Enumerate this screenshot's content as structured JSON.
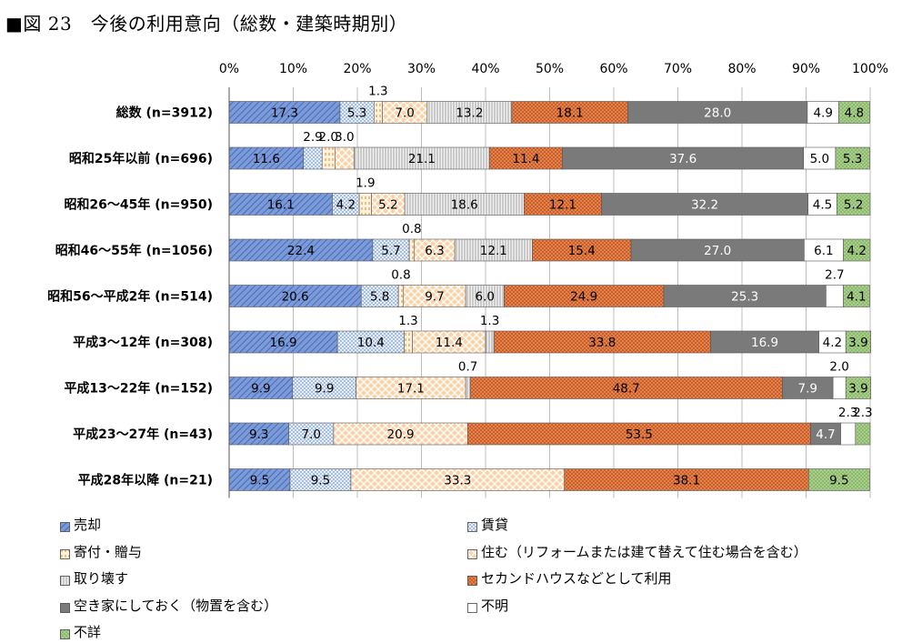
{
  "title": "■図 23　今後の利用意向（総数・建築時期別）",
  "chart_data": {
    "type": "bar",
    "orientation": "horizontal",
    "stacked": "percent",
    "title": "■図 23　今後の利用意向（総数・建築時期別）",
    "x_ticks": [
      "0%",
      "10%",
      "20%",
      "30%",
      "40%",
      "50%",
      "60%",
      "70%",
      "80%",
      "90%",
      "100%"
    ],
    "xlim": [
      0,
      100
    ],
    "legend_position": "bottom",
    "categories": [
      "総数 (n=3912)",
      "昭和25年以前 (n=696)",
      "昭和26～45年 (n=950)",
      "昭和46～55年 (n=1056)",
      "昭和56～平成2年 (n=514)",
      "平成3～12年 (n=308)",
      "平成13～22年 (n=152)",
      "平成23～27年 (n=43)",
      "平成28年以降 (n=21)"
    ],
    "series": [
      {
        "name": "売却",
        "color": "#6f8fd1",
        "pattern": "diag-blue",
        "values": [
          17.3,
          11.6,
          16.1,
          22.4,
          20.6,
          16.9,
          9.9,
          9.3,
          9.5
        ]
      },
      {
        "name": "賃貸",
        "color": "#dbe7f4",
        "pattern": "dots-blue",
        "values": [
          5.3,
          2.9,
          4.2,
          5.7,
          5.8,
          10.4,
          9.9,
          7.0,
          9.5
        ]
      },
      {
        "name": "寄付・贈与",
        "color": "#fde1b8",
        "pattern": "dash-orange",
        "values": [
          1.3,
          2.0,
          1.9,
          0.8,
          0.8,
          1.3,
          0.0,
          0.0,
          0.0
        ]
      },
      {
        "name": "住む（リフォームまたは建て替えて住む場合を含む）",
        "color": "#f9c89a",
        "pattern": "lattice-orange",
        "values": [
          7.0,
          3.0,
          5.2,
          6.3,
          9.7,
          11.4,
          17.1,
          20.9,
          33.3
        ]
      },
      {
        "name": "取り壊す",
        "color": "#e6e6e6",
        "pattern": "vlines-gray",
        "values": [
          13.2,
          21.1,
          18.6,
          12.1,
          6.0,
          1.3,
          0.7,
          0.0,
          0.0
        ]
      },
      {
        "name": "セカンドハウスなどとして利用",
        "color": "#e07b48",
        "pattern": "cross-orange",
        "values": [
          18.1,
          11.4,
          12.1,
          15.4,
          24.9,
          33.8,
          48.7,
          53.5,
          38.1
        ]
      },
      {
        "name": "空き家にしておく（物置を含む）",
        "color": "#7a7a7a",
        "pattern": "solid",
        "values": [
          28.0,
          37.6,
          32.2,
          27.0,
          25.3,
          16.9,
          7.9,
          4.7,
          0.0
        ]
      },
      {
        "name": "不明",
        "color": "#ffffff",
        "pattern": "solid",
        "values": [
          4.9,
          5.0,
          4.5,
          6.1,
          2.7,
          4.2,
          2.0,
          2.3,
          0.0
        ]
      },
      {
        "name": "不詳",
        "color": "#a9d18e",
        "pattern": "dots-green",
        "values": [
          4.8,
          5.3,
          5.2,
          4.2,
          4.1,
          3.9,
          3.9,
          2.3,
          9.5
        ]
      }
    ],
    "data_labels": [
      [
        "17.3",
        "5.3",
        "1.3",
        "7.0",
        "13.2",
        "18.1",
        "28.0",
        "4.9",
        "4.8"
      ],
      [
        "11.6",
        "2.9",
        "2.0",
        "3.0",
        "21.1",
        "11.4",
        "37.6",
        "5.0",
        "5.3"
      ],
      [
        "16.1",
        "4.2",
        "1.9",
        "5.2",
        "18.6",
        "12.1",
        "32.2",
        "4.5",
        "5.2"
      ],
      [
        "22.4",
        "5.7",
        "0.8",
        "6.3",
        "12.1",
        "15.4",
        "27.0",
        "6.1",
        "4.2"
      ],
      [
        "20.6",
        "5.8",
        "0.8",
        "9.7",
        "6.0",
        "24.9",
        "25.3",
        "2.7",
        "4.1"
      ],
      [
        "16.9",
        "10.4",
        "1.3",
        "11.4",
        "1.3",
        "33.8",
        "16.9",
        "4.2",
        "3.9"
      ],
      [
        "9.9",
        "9.9",
        "",
        "17.1",
        "0.7",
        "48.7",
        "7.9",
        "2.0",
        "3.9"
      ],
      [
        "9.3",
        "7.0",
        "",
        "20.9",
        "",
        "53.5",
        "4.7",
        "2.3",
        "2.3"
      ],
      [
        "9.5",
        "9.5",
        "",
        "33.3",
        "",
        "38.1",
        "",
        "",
        "9.5"
      ]
    ]
  }
}
